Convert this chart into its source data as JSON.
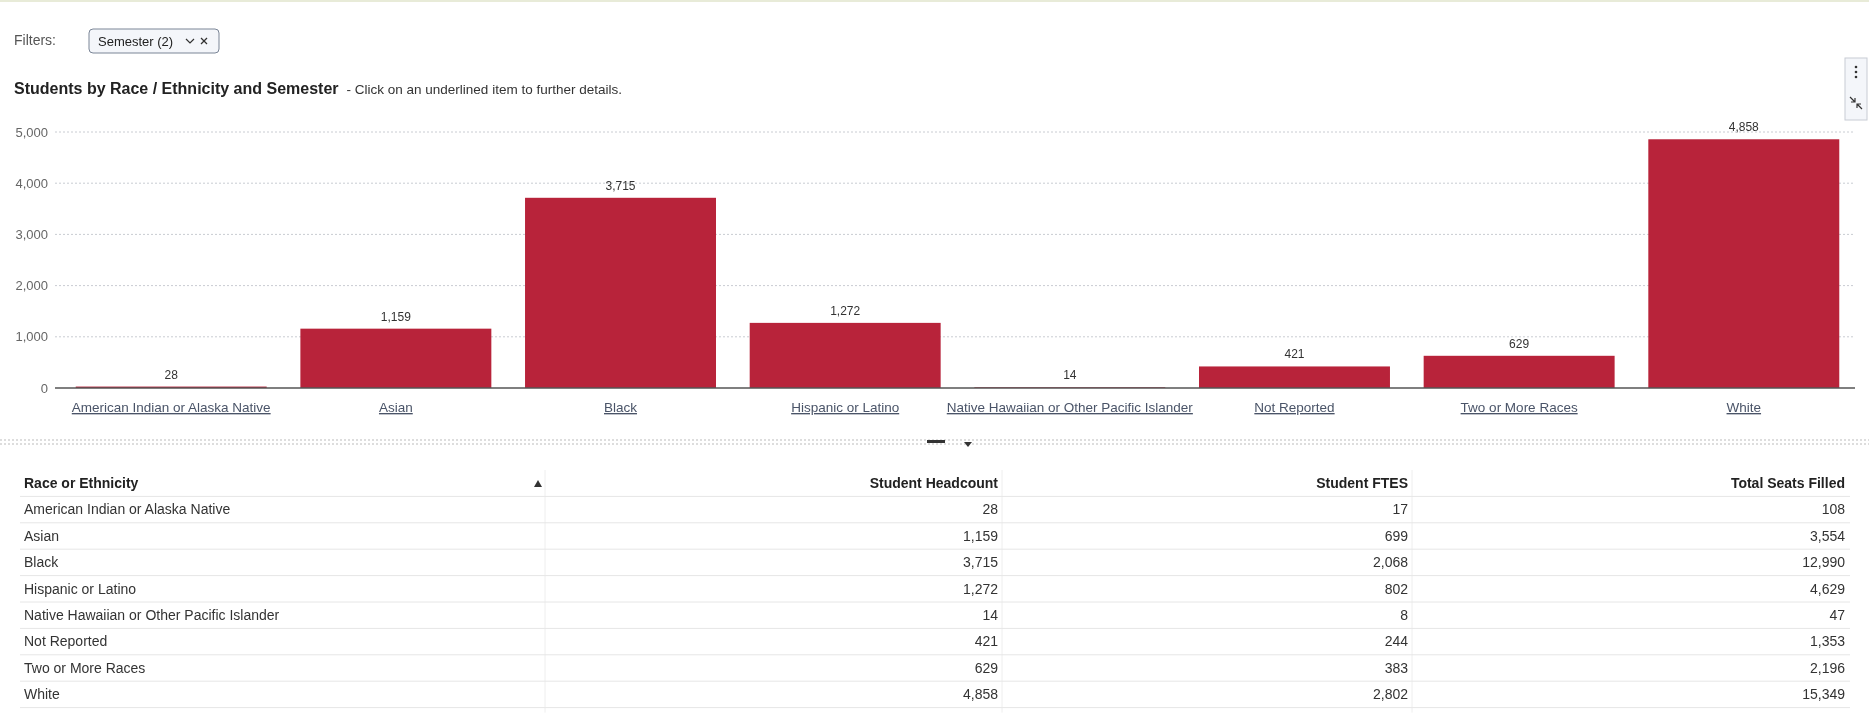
{
  "chart_data": [
    {
      "type": "bar",
      "title": "Students by Race / Ethnicity and Semester",
      "subtitle": "- Click on an underlined item to further details.",
      "annotations": [
        "Filters:",
        "Semester (2)"
      ],
      "categories": [
        "American Indian or Alaska Native",
        "Asian",
        "Black",
        "Hispanic or Latino",
        "Native Hawaiian or Other Pacific Islander",
        "Not Reported",
        "Two or More Races",
        "White"
      ],
      "values": [
        28,
        1159,
        3715,
        1272,
        14,
        421,
        629,
        4858
      ],
      "value_labels": [
        "28",
        "1,159",
        "3,715",
        "1,272",
        "14",
        "421",
        "629",
        "4,858"
      ],
      "color": "#b8233a",
      "ylim": [
        0,
        5000
      ],
      "yticks": [
        {
          "value": 0,
          "label": "0"
        },
        {
          "value": 1000,
          "label": "1,000"
        },
        {
          "value": 2000,
          "label": "2,000"
        },
        {
          "value": 3000,
          "label": "3,000"
        },
        {
          "value": 4000,
          "label": "4,000"
        },
        {
          "value": 5000,
          "label": "5,000"
        }
      ],
      "grid": "y"
    },
    {
      "type": "other",
      "xlabel": "Race or Ethnicity",
      "categories": [
        "American Indian or Alaska Native",
        "Asian",
        "Black",
        "Hispanic or Latino",
        "Native Hawaiian or Other Pacific Islander",
        "Not Reported",
        "Two or More Races",
        "White"
      ],
      "series": [
        {
          "name": "Student Headcount",
          "values": [
            28,
            1159,
            3715,
            1272,
            14,
            421,
            629,
            4858
          ],
          "value_labels": [
            "28",
            "1,159",
            "3,715",
            "1,272",
            "14",
            "421",
            "629",
            "4,858"
          ]
        },
        {
          "name": "Student FTES",
          "values": [
            17,
            699,
            2068,
            802,
            8,
            244,
            383,
            2802
          ],
          "value_labels": [
            "17",
            "699",
            "2,068",
            "802",
            "8",
            "244",
            "383",
            "2,802"
          ]
        },
        {
          "name": "Total Seats Filled",
          "values": [
            108,
            3554,
            12990,
            4629,
            47,
            1353,
            2196,
            15349
          ],
          "value_labels": [
            "108",
            "3,554",
            "12,990",
            "4,629",
            "47",
            "1,353",
            "2,196",
            "15,349"
          ]
        }
      ]
    }
  ]
}
